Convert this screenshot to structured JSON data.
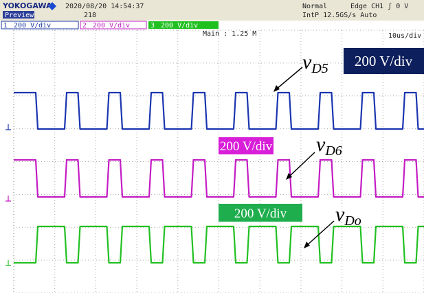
{
  "header": {
    "brand": "YOKOGAWA",
    "mode": "Preview",
    "timestamp": "2020/08/20 14:54:37",
    "count": "218",
    "trigger_mode": "Normal",
    "trigger": "Edge CH1 ʃ 0 V",
    "sampling": "IntP 12.5GS/s Auto"
  },
  "channels": [
    {
      "number": "1",
      "scale": "200 V/div"
    },
    {
      "number": "2",
      "scale": "200 V/div"
    },
    {
      "number": "3",
      "scale": "200 V/div"
    }
  ],
  "screen": {
    "record": "Main : 1.25 M",
    "timebase": "10us/div"
  },
  "annotations": [
    {
      "symbol": "v",
      "subscript": "D5",
      "scale": "200 V/div"
    },
    {
      "symbol": "v",
      "subscript": "D6",
      "scale": "200 V/div"
    },
    {
      "symbol": "v",
      "subscript": "Do",
      "scale": "200 V/div"
    }
  ]
}
